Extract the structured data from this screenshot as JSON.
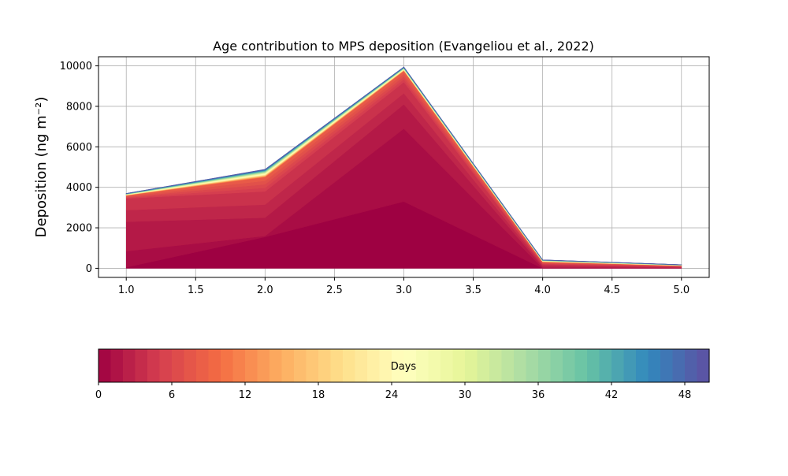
{
  "chart_data": {
    "type": "area",
    "title": "Age contribution to MPS deposition (Evangeliou et al., 2022)",
    "xlabel": "",
    "ylabel": "Deposition (ng m⁻²)",
    "x": [
      1,
      2,
      3,
      4,
      5
    ],
    "xlim": [
      0.8,
      5.2
    ],
    "ylim": [
      -450,
      10450
    ],
    "xticks": [
      1.0,
      1.5,
      2.0,
      2.5,
      3.0,
      3.5,
      4.0,
      4.5,
      5.0
    ],
    "xtick_labels": [
      "1.0",
      "1.5",
      "2.0",
      "2.5",
      "3.0",
      "3.5",
      "4.0",
      "4.5",
      "5.0"
    ],
    "yticks": [
      0,
      2000,
      4000,
      6000,
      8000,
      10000
    ],
    "ytick_labels": [
      "0",
      "2000",
      "4000",
      "6000",
      "8000",
      "10000"
    ],
    "grid": true,
    "stacked": true,
    "series_count": 50,
    "cumulative_levels": [
      {
        "day": 0,
        "values": [
          50,
          1550,
          3300,
          0,
          0
        ]
      },
      {
        "day": 1,
        "values": [
          850,
          1600,
          6900,
          20,
          10
        ]
      },
      {
        "day": 2,
        "values": [
          2300,
          2500,
          8100,
          80,
          30
        ]
      },
      {
        "day": 4,
        "values": [
          3450,
          3800,
          9200,
          200,
          80
        ]
      },
      {
        "day": 8,
        "values": [
          3600,
          4500,
          9750,
          320,
          130
        ]
      },
      {
        "day": 50,
        "values": [
          3700,
          4900,
          9950,
          420,
          180
        ]
      }
    ],
    "colorbar": {
      "label": "Days",
      "min": 0,
      "max": 50,
      "ticks": [
        0,
        6,
        12,
        18,
        24,
        30,
        36,
        42,
        48
      ],
      "tick_labels": [
        "0",
        "6",
        "12",
        "18",
        "24",
        "30",
        "36",
        "42",
        "48"
      ],
      "colormap": "Spectral",
      "colormap_stops": [
        "#9e0142",
        "#d53e4f",
        "#f46d43",
        "#fdae61",
        "#fee08b",
        "#ffffbf",
        "#e6f598",
        "#abdda4",
        "#66c2a5",
        "#3288bd",
        "#5e4fa2"
      ]
    }
  }
}
